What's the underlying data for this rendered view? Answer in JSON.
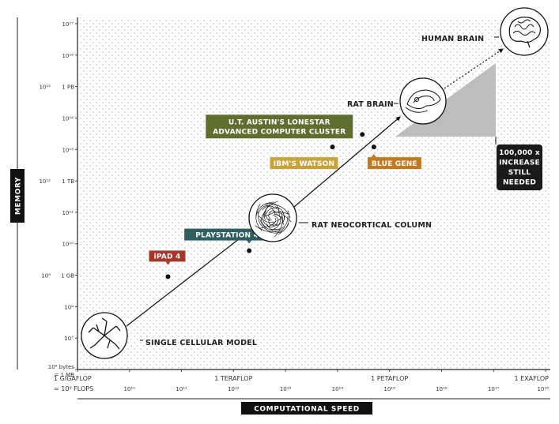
{
  "chart_data": {
    "type": "scatter",
    "xlabel": "COMPUTATIONAL SPEED",
    "ylabel": "MEMORY",
    "x_scale": "log",
    "y_scale": "log",
    "xlim": [
      1000000000.0,
      1e+18
    ],
    "ylim": [
      1000000.0,
      1e+17
    ],
    "grid": false,
    "x_ticks": [
      {
        "value": 1000000000.0,
        "label": "= 10⁹ FLOPS",
        "name": "1 GIGAFLOP"
      },
      {
        "value": 10000000000.0,
        "label": "10¹⁰"
      },
      {
        "value": 100000000000.0,
        "label": "10¹¹"
      },
      {
        "value": 1000000000000.0,
        "label": "10¹²",
        "name": "1 TERAFLOP"
      },
      {
        "value": 10000000000000.0,
        "label": "10¹³"
      },
      {
        "value": 100000000000000.0,
        "label": "10¹⁴"
      },
      {
        "value": 1000000000000000.0,
        "label": "10¹⁵",
        "name": "1 PETAFLOP"
      },
      {
        "value": 1e+16,
        "label": "10¹⁶"
      },
      {
        "value": 1e+17,
        "label": "10¹⁷"
      },
      {
        "value": 1e+18,
        "label": "10¹⁸",
        "name": "1 EXAFLOP"
      }
    ],
    "y_ticks": [
      {
        "value": 1000000.0,
        "label": "10⁶ bytes",
        "name": "= 1 MB"
      },
      {
        "value": 10000000.0,
        "label": "10⁷"
      },
      {
        "value": 100000000.0,
        "label": "10⁸"
      },
      {
        "value": 1000000000.0,
        "label": "10⁹",
        "name": "1 GB"
      },
      {
        "value": 10000000000.0,
        "label": "10¹⁰"
      },
      {
        "value": 100000000000.0,
        "label": "10¹¹"
      },
      {
        "value": 1000000000000.0,
        "label": "10¹²",
        "name": "1 TB"
      },
      {
        "value": 10000000000000.0,
        "label": "10¹³"
      },
      {
        "value": 100000000000000.0,
        "label": "10¹⁴"
      },
      {
        "value": 1000000000000000.0,
        "label": "10¹⁵",
        "name": "1 PB"
      },
      {
        "value": 1e+16,
        "label": "10¹⁶"
      },
      {
        "value": 1e+17,
        "label": "10¹⁷"
      }
    ],
    "devices": [
      {
        "name": "iPAD 4",
        "x": 55000000000.0,
        "y": 900000000.0,
        "color": "#a8352a"
      },
      {
        "name": "PLAYSTATION 4",
        "x": 2000000000000.0,
        "y": 6000000000.0,
        "color": "#2f5f5f"
      },
      {
        "name": "IBM'S WATSON",
        "x": 80000000000000.0,
        "y": 12000000000000.0,
        "color": "#c8a23a"
      },
      {
        "name": "BLUE GENE",
        "x": 500000000000000.0,
        "y": 12000000000000.0,
        "color": "#c07a22"
      },
      {
        "name": "U.T. AUSTIN'S LONESTAR ADVANCED COMPUTER CLUSTER",
        "lines": [
          "U.T. AUSTIN'S LONESTAR",
          "ADVANCED COMPUTER CLUSTER"
        ],
        "x": 300000000000000.0,
        "y": 30000000000000.0,
        "color": "#5e6e2e"
      }
    ],
    "models": [
      {
        "name": "SINGLE CELLULAR MODEL",
        "x": 1200000000.0,
        "y": 7000000.0,
        "icon": "neuron-icon"
      },
      {
        "name": "RAT NEOCORTICAL COLUMN",
        "x": 10000000000000.0,
        "y": 20000000000.0,
        "icon": "column-icon"
      },
      {
        "name": "RAT BRAIN",
        "x": 5000000000000000.0,
        "y": 800000000000000.0,
        "icon": "rat-brain-icon"
      },
      {
        "name": "HUMAN BRAIN",
        "x": 1e+18,
        "y": 1.2e+17,
        "icon": "human-brain-icon"
      }
    ],
    "annotation": {
      "lines": [
        "100,000 x",
        "INCREASE",
        "STILL",
        "NEEDED"
      ]
    },
    "colors": {
      "dots": "#a9b2c6",
      "callout": "#1a1a1a",
      "wedge": "#bdbdbd"
    }
  }
}
